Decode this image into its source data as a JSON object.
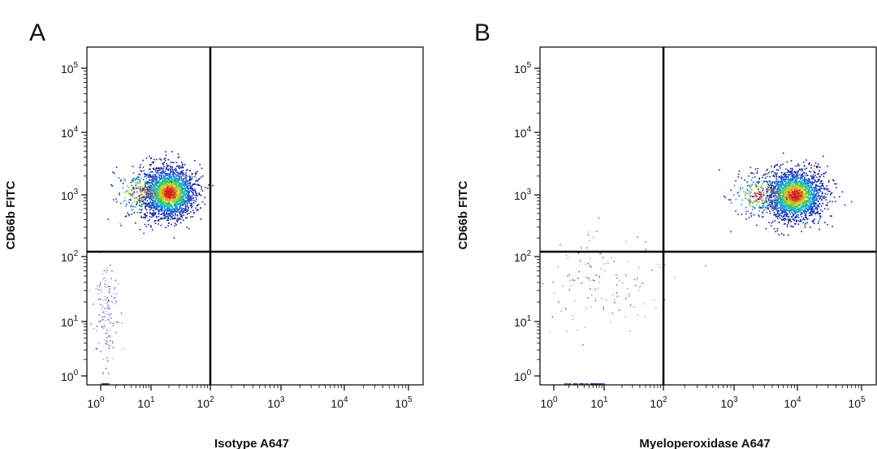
{
  "chart_data": [
    {
      "type": "scatter",
      "subtype": "flow-cytometry-density-dot-plot",
      "panel_label": "A",
      "xlabel": "Isotype A647",
      "ylabel": "CD66b FITC",
      "xscale": "log",
      "yscale": "log",
      "xlim": [
        1,
        100000
      ],
      "ylim": [
        1,
        100000
      ],
      "x_ticks": [
        {
          "base": "10",
          "exp": "0"
        },
        {
          "base": "10",
          "exp": "1"
        },
        {
          "base": "10",
          "exp": "2"
        },
        {
          "base": "10",
          "exp": "3"
        },
        {
          "base": "10",
          "exp": "4"
        },
        {
          "base": "10",
          "exp": "5"
        }
      ],
      "y_ticks": [
        {
          "base": "10",
          "exp": "0"
        },
        {
          "base": "10",
          "exp": "1"
        },
        {
          "base": "10",
          "exp": "2"
        },
        {
          "base": "10",
          "exp": "3"
        },
        {
          "base": "10",
          "exp": "4"
        },
        {
          "base": "10",
          "exp": "5"
        }
      ],
      "quadrant_gate": {
        "x": 100,
        "y": 120
      },
      "populations": [
        {
          "name": "main",
          "center_x": 20,
          "center_y": 1100,
          "spread_log_x": 0.22,
          "spread_log_y": 0.2,
          "count": 2600
        },
        {
          "name": "double-negative",
          "center_x": 1.3,
          "center_y": 15,
          "spread_log_x": 0.12,
          "spread_log_y": 0.45,
          "count": 140
        }
      ]
    },
    {
      "type": "scatter",
      "subtype": "flow-cytometry-density-dot-plot",
      "panel_label": "B",
      "xlabel": "Myeloperoxidase A647",
      "ylabel": "CD66b FITC",
      "xscale": "log",
      "yscale": "log",
      "xlim": [
        1,
        100000
      ],
      "ylim": [
        1,
        100000
      ],
      "x_ticks": [
        {
          "base": "10",
          "exp": "0"
        },
        {
          "base": "10",
          "exp": "1"
        },
        {
          "base": "10",
          "exp": "2"
        },
        {
          "base": "10",
          "exp": "3"
        },
        {
          "base": "10",
          "exp": "4"
        },
        {
          "base": "10",
          "exp": "5"
        }
      ],
      "y_ticks": [
        {
          "base": "10",
          "exp": "0"
        },
        {
          "base": "10",
          "exp": "1"
        },
        {
          "base": "10",
          "exp": "2"
        },
        {
          "base": "10",
          "exp": "3"
        },
        {
          "base": "10",
          "exp": "4"
        },
        {
          "base": "10",
          "exp": "5"
        }
      ],
      "quadrant_gate": {
        "x": 100,
        "y": 120
      },
      "populations": [
        {
          "name": "main",
          "center_x": 9000,
          "center_y": 1000,
          "spread_log_x": 0.22,
          "spread_log_y": 0.2,
          "count": 2600
        },
        {
          "name": "double-negative",
          "center_x": 8,
          "center_y": 40,
          "spread_log_x": 0.55,
          "spread_log_y": 0.35,
          "count": 130
        }
      ]
    }
  ]
}
